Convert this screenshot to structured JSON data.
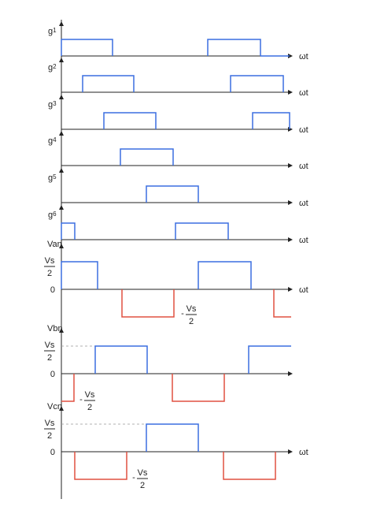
{
  "axis_label": "ωt",
  "pulse_color": "#3b6fe0",
  "negative_color": "#e05040",
  "axis_color": "#222222",
  "gate_signals": [
    {
      "label": "g1",
      "segments": [
        [
          0,
          65
        ],
        [
          186,
          253
        ],
        [
          253,
          290
        ]
      ],
      "levels": [
        1,
        1,
        0
      ]
    },
    {
      "label": "g2",
      "segments": [
        [
          27,
          92
        ],
        [
          215,
          282
        ]
      ]
    },
    {
      "label": "g3",
      "segments": [
        [
          54,
          120
        ],
        [
          243,
          290
        ]
      ]
    },
    {
      "label": "g4",
      "segments": [
        [
          75,
          142
        ]
      ]
    },
    {
      "label": "g5",
      "segments": [
        [
          108,
          174
        ]
      ]
    },
    {
      "label": "g6",
      "segments": [
        [
          0,
          17
        ],
        [
          145,
          212
        ]
      ]
    }
  ],
  "phase_voltages": [
    {
      "label": "Van",
      "top_label_num": "Vs",
      "top_label_den": "2",
      "zero_label": "0",
      "neg_label_sign": "-",
      "neg_label_num": "Vs",
      "neg_label_den": "2",
      "pos_segments": [
        [
          0,
          46
        ],
        [
          174,
          241
        ]
      ],
      "neg_segments": [
        [
          77,
          143
        ],
        [
          270,
          292
        ]
      ]
    },
    {
      "label": "Vbn",
      "top_label_num": "Vs",
      "top_label_den": "2",
      "zero_label": "0",
      "neg_label_sign": "-",
      "neg_label_num": "Vs",
      "neg_label_den": "2",
      "pos_segments": [
        [
          43,
          109
        ],
        [
          238,
          292
        ]
      ],
      "neg_segments": [
        [
          16,
          16
        ],
        [
          141,
          207
        ]
      ]
    },
    {
      "label": "Vcn",
      "top_label_num": "Vs",
      "top_label_den": "2",
      "zero_label": "0",
      "neg_label_sign": "-",
      "neg_label_num": "Vs",
      "neg_label_den": "2",
      "pos_segments": [
        [
          108,
          174
        ]
      ],
      "neg_segments": [
        [
          17,
          83
        ],
        [
          206,
          272
        ]
      ]
    }
  ]
}
